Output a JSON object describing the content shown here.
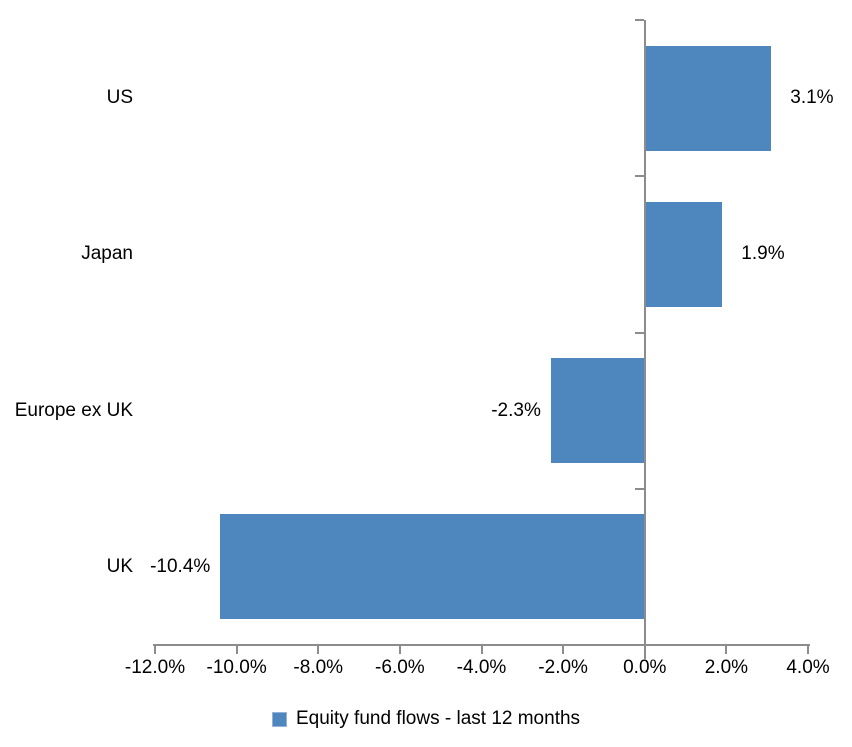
{
  "chart_data": {
    "type": "bar",
    "orientation": "horizontal",
    "title": "",
    "xlabel": "",
    "ylabel": "",
    "categories": [
      "US",
      "Japan",
      "Europe ex UK",
      "UK"
    ],
    "series": [
      {
        "name": "Equity fund flows - last 12 months",
        "values": [
          3.1,
          1.9,
          -2.3,
          -10.4
        ],
        "data_labels": [
          "3.1%",
          "1.9%",
          "-2.3%",
          "-10.4%"
        ]
      }
    ],
    "xlim": [
      -12.0,
      4.0
    ],
    "x_tick_values": [
      -12,
      -10,
      -8,
      -6,
      -4,
      -2,
      0,
      2,
      4
    ],
    "x_tick_labels": [
      "-12.0%",
      "-10.0%",
      "-8.0%",
      "-6.0%",
      "-4.0%",
      "-2.0%",
      "0.0%",
      "2.0%",
      "4.0%"
    ],
    "grid": "off",
    "legend_position": "bottom",
    "colors": {
      "bar": "#4E87BD",
      "axis": "#8C8C8C",
      "text": "#000000",
      "background": "#FFFFFF",
      "legend_swatch": "#4E87BD",
      "legend_swatch_border": "#95B3D7"
    }
  },
  "legend": {
    "label": "Equity fund flows - last 12 months"
  }
}
